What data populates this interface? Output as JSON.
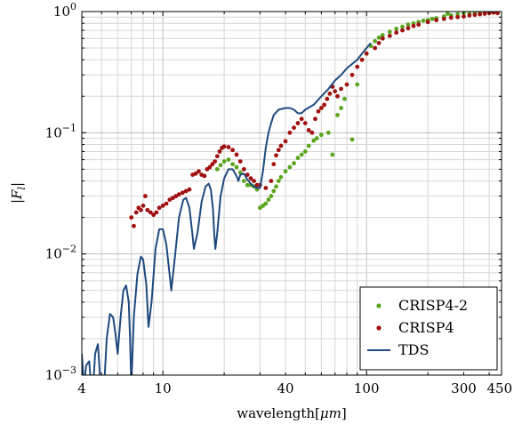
{
  "chart_data": {
    "type": "scatter",
    "xscale": "log",
    "yscale": "log",
    "xlim": [
      4,
      460
    ],
    "ylim": [
      0.001,
      1
    ],
    "xticks": [
      {
        "value": 4,
        "label": "4"
      },
      {
        "value": 10,
        "label": "10"
      },
      {
        "value": 40,
        "label": "40"
      },
      {
        "value": 100,
        "label": "100"
      },
      {
        "value": 300,
        "label": "300"
      },
      {
        "value": 450,
        "label": "450"
      }
    ],
    "yticks": [
      {
        "value": 0.001,
        "base": "10",
        "exp": "−3"
      },
      {
        "value": 0.01,
        "base": "10",
        "exp": "−2"
      },
      {
        "value": 0.1,
        "base": "10",
        "exp": "−1"
      },
      {
        "value": 1,
        "base": "10",
        "exp": "0"
      }
    ],
    "xlabel": "wavelength[μm]",
    "xlabel_plain": "wavelength[",
    "xlabel_unit": "μm",
    "xlabel_close": "]",
    "ylabel": "|F_l|",
    "ylabel_bar_open": "|",
    "ylabel_main": "F",
    "ylabel_sub": "l",
    "ylabel_bar_close": "|",
    "grid": true,
    "legend_position": "bottom-right",
    "series": [
      {
        "name": "CRISP4-2",
        "type": "scatter",
        "color": "#5aa51e",
        "points": [
          [
            18.5,
            0.05
          ],
          [
            19.2,
            0.054
          ],
          [
            20,
            0.058
          ],
          [
            21,
            0.06
          ],
          [
            22,
            0.055
          ],
          [
            23,
            0.052
          ],
          [
            24,
            0.047
          ],
          [
            25,
            0.04
          ],
          [
            26,
            0.037
          ],
          [
            27,
            0.037
          ],
          [
            28,
            0.036
          ],
          [
            29,
            0.034
          ],
          [
            30,
            0.024
          ],
          [
            31,
            0.025
          ],
          [
            32,
            0.026
          ],
          [
            33,
            0.028
          ],
          [
            34,
            0.03
          ],
          [
            35,
            0.033
          ],
          [
            36,
            0.036
          ],
          [
            37,
            0.04
          ],
          [
            38,
            0.043
          ],
          [
            40,
            0.048
          ],
          [
            42,
            0.052
          ],
          [
            44,
            0.056
          ],
          [
            46,
            0.062
          ],
          [
            48,
            0.066
          ],
          [
            50,
            0.07
          ],
          [
            52,
            0.078
          ],
          [
            55,
            0.086
          ],
          [
            57,
            0.09
          ],
          [
            60,
            0.096
          ],
          [
            65,
            0.1
          ],
          [
            68,
            0.066
          ],
          [
            72,
            0.14
          ],
          [
            75,
            0.16
          ],
          [
            78,
            0.19
          ],
          [
            85,
            0.088
          ],
          [
            90,
            0.25
          ],
          [
            100,
            0.45
          ],
          [
            105,
            0.52
          ],
          [
            110,
            0.57
          ],
          [
            115,
            0.61
          ],
          [
            120,
            0.64
          ],
          [
            130,
            0.68
          ],
          [
            140,
            0.72
          ],
          [
            150,
            0.75
          ],
          [
            160,
            0.78
          ],
          [
            170,
            0.8
          ],
          [
            180,
            0.82
          ],
          [
            190,
            0.84
          ],
          [
            200,
            0.85
          ],
          [
            210,
            0.87
          ],
          [
            220,
            0.88
          ],
          [
            240,
            0.91
          ],
          [
            250,
            0.96
          ],
          [
            260,
            0.93
          ],
          [
            280,
            0.95
          ],
          [
            300,
            0.97
          ],
          [
            320,
            0.96
          ],
          [
            340,
            0.98
          ],
          [
            360,
            0.97
          ],
          [
            380,
            0.99
          ],
          [
            400,
            1
          ],
          [
            420,
            0.98
          ],
          [
            440,
            1
          ]
        ]
      },
      {
        "name": "CRISP4",
        "type": "scatter",
        "color": "#a01010",
        "points": [
          [
            7,
            0.02
          ],
          [
            7.2,
            0.017
          ],
          [
            7.4,
            0.022
          ],
          [
            7.6,
            0.024
          ],
          [
            7.8,
            0.023
          ],
          [
            8,
            0.025
          ],
          [
            8.2,
            0.03
          ],
          [
            8.4,
            0.023
          ],
          [
            8.7,
            0.022
          ],
          [
            9,
            0.021
          ],
          [
            9.3,
            0.022
          ],
          [
            9.6,
            0.024
          ],
          [
            10,
            0.025
          ],
          [
            10.4,
            0.026
          ],
          [
            10.8,
            0.028
          ],
          [
            11.2,
            0.029
          ],
          [
            11.6,
            0.03
          ],
          [
            12,
            0.031
          ],
          [
            12.5,
            0.032
          ],
          [
            13,
            0.033
          ],
          [
            13.5,
            0.034
          ],
          [
            14,
            0.045
          ],
          [
            14.5,
            0.046
          ],
          [
            15,
            0.048
          ],
          [
            15.5,
            0.045
          ],
          [
            16,
            0.044
          ],
          [
            16.5,
            0.05
          ],
          [
            17,
            0.052
          ],
          [
            17.5,
            0.055
          ],
          [
            18,
            0.058
          ],
          [
            18.5,
            0.064
          ],
          [
            19,
            0.07
          ],
          [
            19.5,
            0.075
          ],
          [
            20,
            0.077
          ],
          [
            21,
            0.076
          ],
          [
            22,
            0.072
          ],
          [
            23,
            0.066
          ],
          [
            24,
            0.058
          ],
          [
            25,
            0.05
          ],
          [
            26,
            0.045
          ],
          [
            27,
            0.042
          ],
          [
            28,
            0.04
          ],
          [
            29,
            0.037
          ],
          [
            30,
            0.037
          ],
          [
            32,
            0.035
          ],
          [
            34,
            0.04
          ],
          [
            35,
            0.055
          ],
          [
            36,
            0.065
          ],
          [
            37,
            0.072
          ],
          [
            38,
            0.078
          ],
          [
            40,
            0.085
          ],
          [
            42,
            0.1
          ],
          [
            44,
            0.11
          ],
          [
            46,
            0.12
          ],
          [
            48,
            0.13
          ],
          [
            50,
            0.12
          ],
          [
            52,
            0.105
          ],
          [
            54,
            0.1
          ],
          [
            56,
            0.13
          ],
          [
            58,
            0.15
          ],
          [
            60,
            0.16
          ],
          [
            62,
            0.17
          ],
          [
            64,
            0.19
          ],
          [
            66,
            0.21
          ],
          [
            68,
            0.24
          ],
          [
            70,
            0.22
          ],
          [
            72,
            0.2
          ],
          [
            75,
            0.23
          ],
          [
            80,
            0.25
          ],
          [
            85,
            0.3
          ],
          [
            90,
            0.35
          ],
          [
            95,
            0.4
          ],
          [
            100,
            0.45
          ],
          [
            110,
            0.5
          ],
          [
            115,
            0.55
          ],
          [
            120,
            0.6
          ],
          [
            130,
            0.63
          ],
          [
            140,
            0.67
          ],
          [
            150,
            0.7
          ],
          [
            160,
            0.73
          ],
          [
            170,
            0.76
          ],
          [
            180,
            0.78
          ],
          [
            200,
            0.82
          ],
          [
            220,
            0.85
          ],
          [
            240,
            0.87
          ],
          [
            260,
            0.89
          ],
          [
            280,
            0.9
          ],
          [
            300,
            0.91
          ],
          [
            320,
            0.93
          ],
          [
            340,
            0.94
          ],
          [
            360,
            0.95
          ],
          [
            380,
            0.96
          ],
          [
            400,
            0.97
          ],
          [
            420,
            0.98
          ],
          [
            440,
            0.97
          ]
        ]
      },
      {
        "name": "TDS",
        "type": "line",
        "color": "#1f497d",
        "points": [
          [
            4,
            0.0015
          ],
          [
            4.1,
            0.0008
          ],
          [
            4.2,
            0.0012
          ],
          [
            4.35,
            0.0013
          ],
          [
            4.5,
            0.0006
          ],
          [
            4.65,
            0.0015
          ],
          [
            4.8,
            0.0018
          ],
          [
            4.95,
            0.0008
          ],
          [
            5.1,
            0.0006
          ],
          [
            5.3,
            0.002
          ],
          [
            5.5,
            0.0032
          ],
          [
            5.7,
            0.003
          ],
          [
            5.85,
            0.0022
          ],
          [
            6,
            0.0015
          ],
          [
            6.2,
            0.003
          ],
          [
            6.4,
            0.005
          ],
          [
            6.6,
            0.0055
          ],
          [
            6.8,
            0.004
          ],
          [
            6.9,
            0.002
          ],
          [
            7,
            0.0008
          ],
          [
            7.2,
            0.003
          ],
          [
            7.5,
            0.0068
          ],
          [
            7.8,
            0.0095
          ],
          [
            8,
            0.009
          ],
          [
            8.3,
            0.0055
          ],
          [
            8.5,
            0.0025
          ],
          [
            8.8,
            0.004
          ],
          [
            9.2,
            0.011
          ],
          [
            9.6,
            0.016
          ],
          [
            10,
            0.016
          ],
          [
            10.4,
            0.012
          ],
          [
            10.8,
            0.0067
          ],
          [
            11,
            0.005
          ],
          [
            11.5,
            0.01
          ],
          [
            12,
            0.02
          ],
          [
            12.6,
            0.028
          ],
          [
            13,
            0.029
          ],
          [
            13.5,
            0.024
          ],
          [
            14,
            0.014
          ],
          [
            14.2,
            0.011
          ],
          [
            14.8,
            0.015
          ],
          [
            15.5,
            0.027
          ],
          [
            16.2,
            0.036
          ],
          [
            16.8,
            0.038
          ],
          [
            17.2,
            0.034
          ],
          [
            17.6,
            0.024
          ],
          [
            17.9,
            0.014
          ],
          [
            18.1,
            0.011
          ],
          [
            18.5,
            0.015
          ],
          [
            19.2,
            0.03
          ],
          [
            20,
            0.042
          ],
          [
            21,
            0.05
          ],
          [
            22,
            0.05
          ],
          [
            23,
            0.044
          ],
          [
            23.5,
            0.04
          ],
          [
            24,
            0.045
          ],
          [
            25,
            0.046
          ],
          [
            26,
            0.041
          ],
          [
            27,
            0.038
          ],
          [
            28,
            0.036
          ],
          [
            29,
            0.035
          ],
          [
            30,
            0.035
          ],
          [
            31,
            0.048
          ],
          [
            32,
            0.075
          ],
          [
            33,
            0.1
          ],
          [
            34,
            0.12
          ],
          [
            35,
            0.14
          ],
          [
            37,
            0.155
          ],
          [
            40,
            0.16
          ],
          [
            42,
            0.16
          ],
          [
            44,
            0.155
          ],
          [
            46,
            0.145
          ],
          [
            48,
            0.145
          ],
          [
            50,
            0.155
          ],
          [
            55,
            0.17
          ],
          [
            60,
            0.2
          ],
          [
            65,
            0.23
          ],
          [
            70,
            0.27
          ],
          [
            75,
            0.3
          ],
          [
            80,
            0.34
          ],
          [
            85,
            0.37
          ],
          [
            90,
            0.4
          ],
          [
            95,
            0.45
          ],
          [
            100,
            0.5
          ],
          [
            105,
            0.55
          ]
        ]
      }
    ]
  }
}
